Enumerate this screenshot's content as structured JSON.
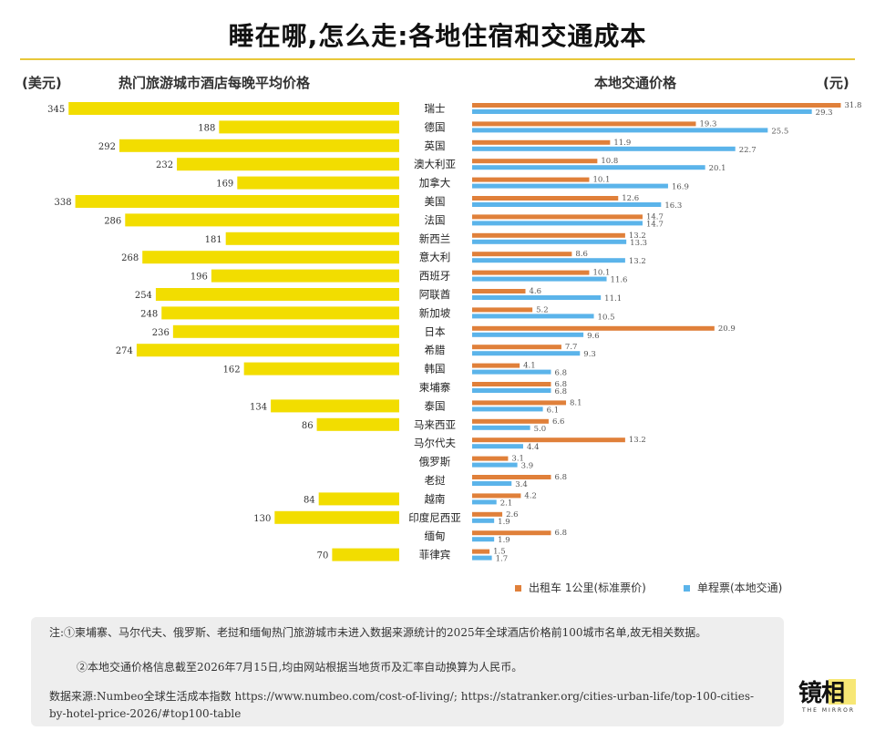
{
  "title": "睡在哪,怎么走:各地住宿和交通成本",
  "colors": {
    "hotel": "#F2DD00",
    "taxi": "#E0803A",
    "ticket": "#5BB4EA",
    "rule": "#E8C73A"
  },
  "chart_data": {
    "type": "bar",
    "categories": [
      "瑞士",
      "德国",
      "英国",
      "澳大利亚",
      "加拿大",
      "美国",
      "法国",
      "新西兰",
      "意大利",
      "西班牙",
      "阿联酋",
      "新加坡",
      "日本",
      "希腊",
      "韩国",
      "柬埔寨",
      "泰国",
      "马来西亚",
      "马尔代夫",
      "俄罗斯",
      "老挝",
      "越南",
      "印度尼西亚",
      "缅甸",
      "菲律宾"
    ],
    "left": {
      "title": "热门旅游城市酒店每晚平均价格",
      "unit": "(美元)",
      "values": [
        345,
        188,
        292,
        232,
        169,
        338,
        286,
        181,
        268,
        196,
        254,
        248,
        236,
        274,
        162,
        null,
        134,
        86,
        null,
        null,
        null,
        84,
        130,
        null,
        70
      ],
      "xlim": [
        0,
        350
      ]
    },
    "right": {
      "title": "本地交通价格",
      "unit": "(元)",
      "xlim": [
        0,
        32
      ],
      "series": [
        {
          "name": "出租车 1公里(标准票价)",
          "values": [
            31.8,
            19.3,
            11.9,
            10.8,
            10.1,
            12.6,
            14.7,
            13.2,
            8.6,
            10.1,
            4.6,
            5.2,
            20.9,
            7.7,
            4.1,
            6.8,
            8.1,
            6.6,
            13.2,
            3.1,
            6.8,
            4.2,
            2.6,
            6.8,
            1.5
          ]
        },
        {
          "name": "单程票(本地交通)",
          "values": [
            29.3,
            25.5,
            22.7,
            20.1,
            16.9,
            16.3,
            14.7,
            13.3,
            13.2,
            11.6,
            11.1,
            10.5,
            9.6,
            9.3,
            6.8,
            6.8,
            6.1,
            5.0,
            4.4,
            3.9,
            3.4,
            2.1,
            1.9,
            1.9,
            1.7
          ]
        }
      ]
    }
  },
  "notes": {
    "n1": "注:①柬埔寨、马尔代夫、俄罗斯、老挝和缅甸热门旅游城市未进入数据来源统计的2025年全球酒店价格前100城市名单,故无相关数据。",
    "n2": "②本地交通价格信息截至2026年7月15日,均由网站根据当地货币及汇率自动换算为人民币。",
    "n3": "数据来源:Numbeo全球生活成本指数 https://www.numbeo.com/cost-of-living/; https://statranker.org/cities-urban-life/top-100-cities-by-hotel-price-2026/#top100-table"
  },
  "logo": {
    "text": "镜相",
    "small": "THE MIRROR"
  }
}
